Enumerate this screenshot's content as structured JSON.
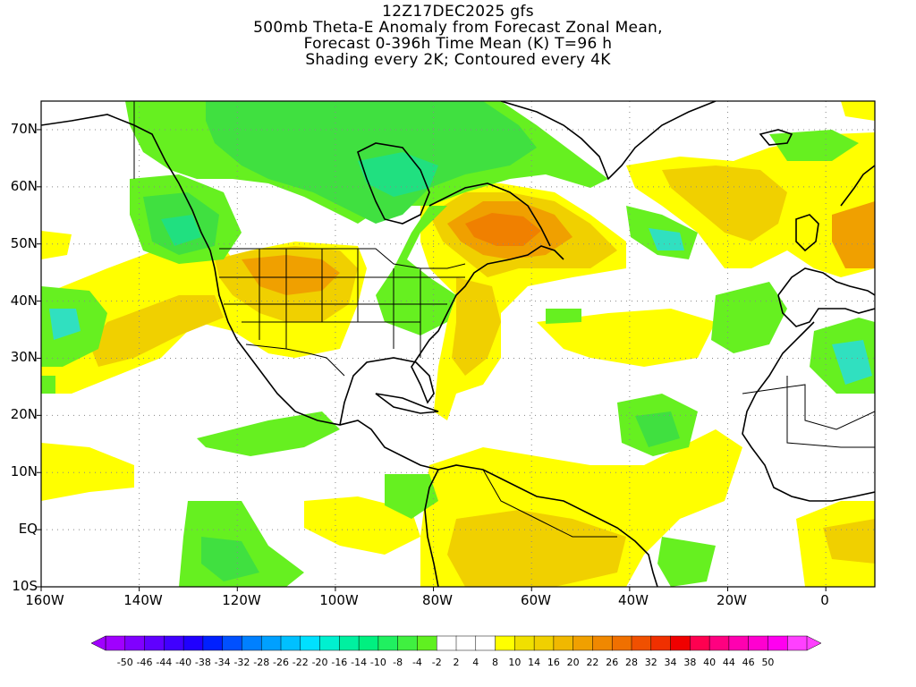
{
  "title": {
    "line1": "12Z17DEC2025 gfs",
    "line2": "500mb Theta-E Anomaly from Forecast Zonal Mean,",
    "line3": "Forecast 0-396h Time Mean (K) T=96 h",
    "line4": "Shading every 2K; Contoured every 4K"
  },
  "map": {
    "lat_labels": [
      "70N",
      "60N",
      "50N",
      "40N",
      "30N",
      "20N",
      "10N",
      "EQ",
      "10S"
    ],
    "lon_labels": [
      "160W",
      "140W",
      "120W",
      "100W",
      "80W",
      "60W",
      "40W",
      "20W",
      "0"
    ],
    "extent": {
      "lon_min": -160,
      "lon_max": 10,
      "lat_min": -10,
      "lat_max": 75
    }
  },
  "colorbar": {
    "labels": [
      "-50",
      "-46",
      "-44",
      "-40",
      "-38",
      "-34",
      "-32",
      "-28",
      "-26",
      "-22",
      "-20",
      "-16",
      "-14",
      "-10",
      "-8",
      "-4",
      "-2",
      "2",
      "4",
      "8",
      "10",
      "14",
      "16",
      "20",
      "22",
      "26",
      "28",
      "32",
      "34",
      "38",
      "40",
      "44",
      "46",
      "50"
    ],
    "colors": [
      "#a000ff",
      "#8000ff",
      "#6000ff",
      "#4000ff",
      "#2000ff",
      "#0020ff",
      "#0050ff",
      "#0080ff",
      "#00a0ff",
      "#00c0ff",
      "#00e0ff",
      "#00f0d0",
      "#00f0a0",
      "#00f080",
      "#20f060",
      "#40f040",
      "#60f020",
      "#ffffff",
      "#ffffff",
      "#ffffff",
      "#ffff00",
      "#f0e000",
      "#f0d000",
      "#f0b800",
      "#f0a000",
      "#f08800",
      "#f07000",
      "#f05000",
      "#f03000",
      "#f00000",
      "#ff0050",
      "#ff0080",
      "#ff00b0",
      "#ff00d0",
      "#ff00f0",
      "#ff40ff"
    ]
  },
  "anomaly_colors": {
    "green_light": "#66f020",
    "green": "#40e040",
    "green_teal": "#20e080",
    "teal": "#30e0c0",
    "yellow": "#ffff00",
    "yellow_orange": "#f0d000",
    "orange": "#f0a000",
    "orange_dark": "#f08000"
  }
}
